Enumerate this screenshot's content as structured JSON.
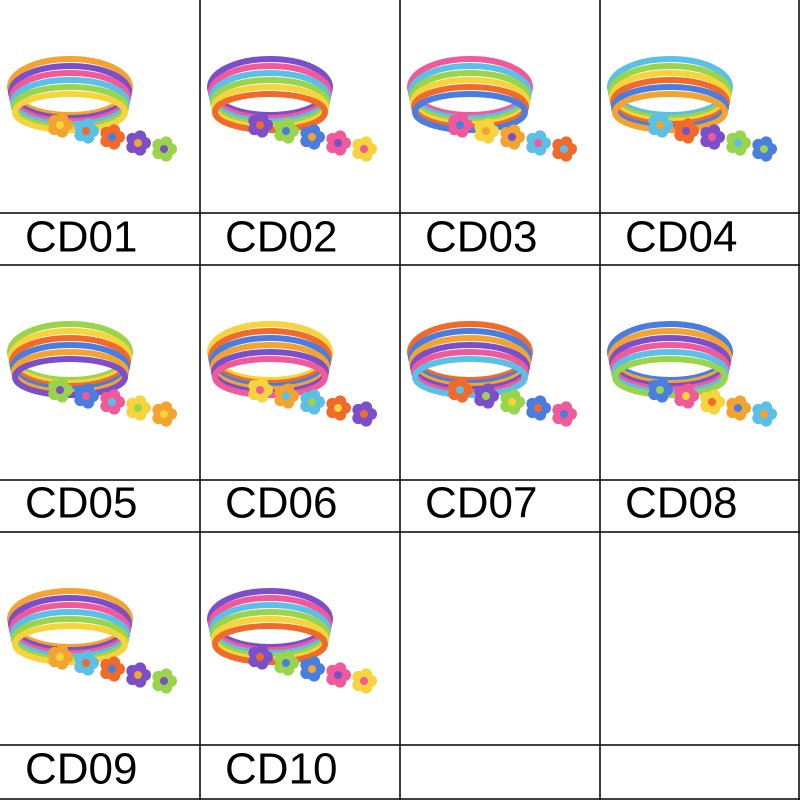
{
  "cells": [
    {
      "label": "CD01"
    },
    {
      "label": "CD02"
    },
    {
      "label": "CD03"
    },
    {
      "label": "CD04"
    },
    {
      "label": "CD05"
    },
    {
      "label": "CD06"
    },
    {
      "label": "CD07"
    },
    {
      "label": "CD08"
    },
    {
      "label": "CD09"
    },
    {
      "label": "CD10"
    }
  ]
}
